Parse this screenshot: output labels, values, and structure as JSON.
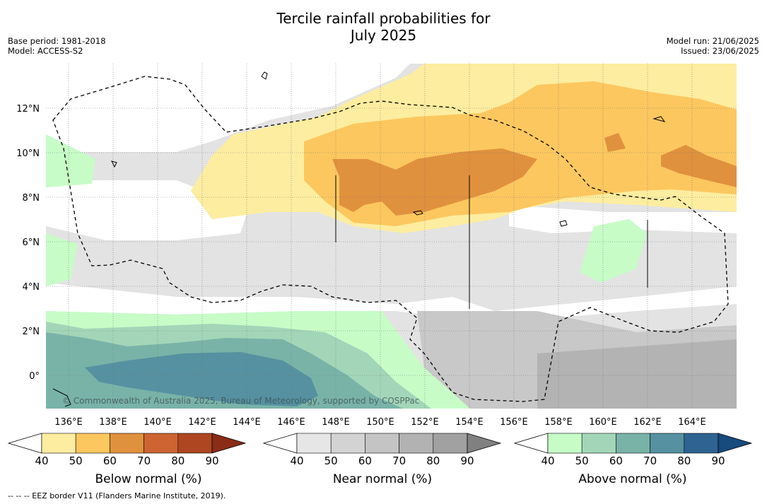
{
  "title_line1": "Tercile rainfall probabilities for",
  "title_line2": "July 2025",
  "base_period": "Base period: 1981-2018",
  "model": "Model: ACCESS-S2",
  "model_run": "Model run: 21/06/2025",
  "issued": "Issued: 23/06/2025",
  "copyright": "© Commonwealth of Australia 2025, Bureau of Meteorology, supported by COSPPac",
  "footnote": "--  --  -- EEZ border V11 (Flanders Marine Institute, 2019).",
  "lon_ticks": [
    "136°E",
    "138°E",
    "140°E",
    "142°E",
    "144°E",
    "146°E",
    "148°E",
    "150°E",
    "152°E",
    "154°E",
    "156°E",
    "158°E",
    "160°E",
    "162°E",
    "164°E"
  ],
  "lat_ticks": [
    "12°N",
    "10°N",
    "8°N",
    "6°N",
    "4°N",
    "2°N",
    "0°"
  ],
  "colorbars": [
    {
      "label": "Below normal (%)",
      "ticks": [
        "40",
        "50",
        "60",
        "70",
        "80",
        "90"
      ],
      "colors": [
        "#ffffff",
        "#fdeda0",
        "#fcc75f",
        "#e0913e",
        "#cd6432",
        "#ad4621",
        "#8a2c17"
      ]
    },
    {
      "label": "Near normal (%)",
      "ticks": [
        "40",
        "50",
        "60",
        "70",
        "80",
        "90"
      ],
      "colors": [
        "#ffffff",
        "#e6e6e6",
        "#d3d3d3",
        "#c4c4c4",
        "#b2b2b2",
        "#a1a1a1",
        "#808080"
      ]
    },
    {
      "label": "Above normal (%)",
      "ticks": [
        "40",
        "50",
        "60",
        "70",
        "80",
        "90"
      ],
      "colors": [
        "#ffffff",
        "#c7fcc7",
        "#a3d6b8",
        "#79b3a8",
        "#5591a0",
        "#2e6392",
        "#174a7d"
      ]
    }
  ]
}
